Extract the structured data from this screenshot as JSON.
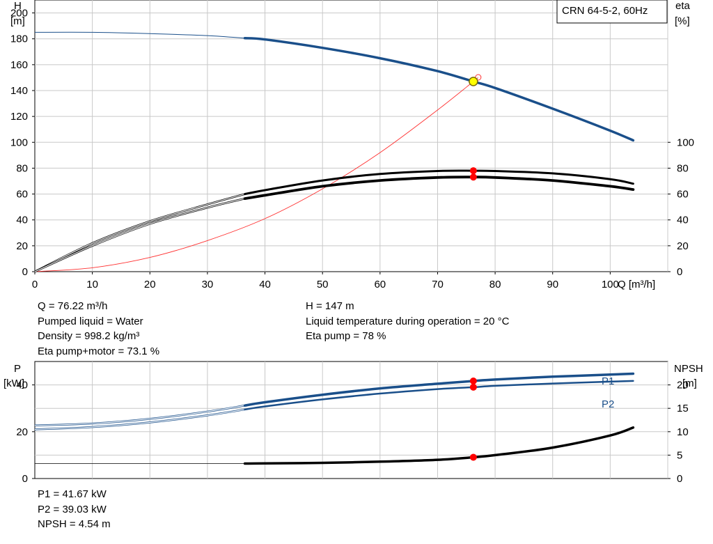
{
  "model_label": "CRN 64-5-2, 60Hz",
  "chart_data": [
    {
      "type": "line",
      "x_axis": {
        "label": "Q [m³/h]",
        "range": [
          0,
          110
        ],
        "ticks": [
          0,
          10,
          20,
          30,
          40,
          50,
          60,
          70,
          80,
          90,
          100
        ]
      },
      "y_left": {
        "label": "H",
        "unit": "[m]",
        "range": [
          0,
          210
        ],
        "ticks": [
          0,
          20,
          40,
          60,
          80,
          100,
          120,
          140,
          160,
          180,
          200
        ]
      },
      "y_right": {
        "label": "eta",
        "unit": "[%]",
        "ticks": [
          0,
          20,
          40,
          60,
          80,
          100
        ]
      },
      "grid": true,
      "series": [
        {
          "key": "head",
          "axis": "left",
          "color": "#1a4f8a",
          "range_start": 36.5,
          "x": [
            0,
            10,
            20,
            30,
            36.5,
            40,
            50,
            60,
            70,
            76.22,
            80,
            90,
            100,
            104
          ],
          "y": [
            185,
            185,
            184,
            182.5,
            180.5,
            179.5,
            173,
            165,
            155,
            147,
            142,
            126,
            109,
            101.5
          ]
        },
        {
          "key": "eta_pump",
          "axis": "right",
          "color": "#000000",
          "range_start": 36.5,
          "x": [
            0,
            10,
            20,
            30,
            36.5,
            40,
            50,
            60,
            70,
            76.22,
            80,
            90,
            100,
            104
          ],
          "y": [
            0,
            22,
            39,
            52,
            60,
            63,
            70.5,
            75.5,
            77.8,
            78,
            77.8,
            76,
            71.5,
            68
          ]
        },
        {
          "key": "eta_total",
          "axis": "right",
          "color": "#000000",
          "range_start": 36.5,
          "x": [
            0,
            10,
            20,
            30,
            36.5,
            40,
            50,
            60,
            70,
            76.22,
            80,
            90,
            100,
            104
          ],
          "y": [
            0,
            20,
            37,
            49.5,
            56.5,
            59,
            66,
            70.5,
            72.8,
            73.1,
            72.8,
            70.5,
            66,
            63.5
          ]
        },
        {
          "key": "system_curve",
          "axis": "left",
          "color": "#ff3030",
          "x": [
            0,
            10,
            20,
            30,
            40,
            50,
            60,
            70,
            76.22,
            77
          ],
          "y": [
            0,
            3,
            11,
            24,
            41,
            64,
            92,
            125,
            147,
            150
          ]
        }
      ],
      "duty_point": {
        "q": 76.22,
        "h": 147,
        "eta_pump": 78,
        "eta_total": 73.1
      }
    },
    {
      "type": "line",
      "x_axis": {
        "range": [
          0,
          110
        ]
      },
      "y_left": {
        "label": "P",
        "unit": "[kW]",
        "range": [
          0,
          50
        ],
        "ticks": [
          0,
          20,
          40
        ]
      },
      "y_right": {
        "label": "NPSH",
        "unit": "[m]",
        "range": [
          0,
          25
        ],
        "ticks": [
          0,
          5,
          10,
          15,
          20
        ]
      },
      "grid": true,
      "series": [
        {
          "key": "p1",
          "name": "P1",
          "axis": "left",
          "color": "#1a4f8a",
          "range_start": 36.5,
          "x": [
            0,
            10,
            20,
            30,
            36.5,
            40,
            50,
            60,
            70,
            76.22,
            80,
            90,
            100,
            104
          ],
          "y": [
            22.7,
            23.5,
            25.5,
            28.6,
            31.2,
            32.6,
            35.8,
            38.5,
            40.5,
            41.67,
            42.3,
            43.5,
            44.4,
            44.8
          ]
        },
        {
          "key": "p2",
          "name": "P2",
          "axis": "left",
          "color": "#1a4f8a",
          "range_start": 36.5,
          "x": [
            0,
            10,
            20,
            30,
            36.5,
            40,
            50,
            60,
            70,
            76.22,
            80,
            90,
            100,
            104
          ],
          "y": [
            21.0,
            22.0,
            24.0,
            27.0,
            29.5,
            30.8,
            33.8,
            36.3,
            38.2,
            39.03,
            39.6,
            40.6,
            41.4,
            41.7
          ]
        },
        {
          "key": "npsh",
          "axis": "right",
          "color": "#000000",
          "range_start": 36.5,
          "x": [
            0,
            10,
            20,
            30,
            36.5,
            40,
            50,
            60,
            70,
            76.22,
            80,
            90,
            100,
            104
          ],
          "y": [
            3.2,
            3.2,
            3.2,
            3.2,
            3.2,
            3.25,
            3.35,
            3.6,
            4.0,
            4.54,
            5.0,
            6.6,
            9.2,
            10.9
          ]
        }
      ],
      "duty_point": {
        "q": 76.22,
        "p1": 41.67,
        "p2": 39.03,
        "npsh": 4.54
      }
    }
  ],
  "info_top_left": [
    "Q = 76.22 m³/h",
    "Pumped liquid = Water",
    "Density = 998.2 kg/m³",
    "Eta pump+motor = 73.1 %"
  ],
  "info_top_right": [
    "H = 147 m",
    "Liquid temperature during operation = 20 °C",
    "Eta pump = 78 %"
  ],
  "info_bottom": [
    "P1 = 41.67 kW",
    "P2 = 39.03 kW",
    "NPSH = 4.54 m"
  ]
}
